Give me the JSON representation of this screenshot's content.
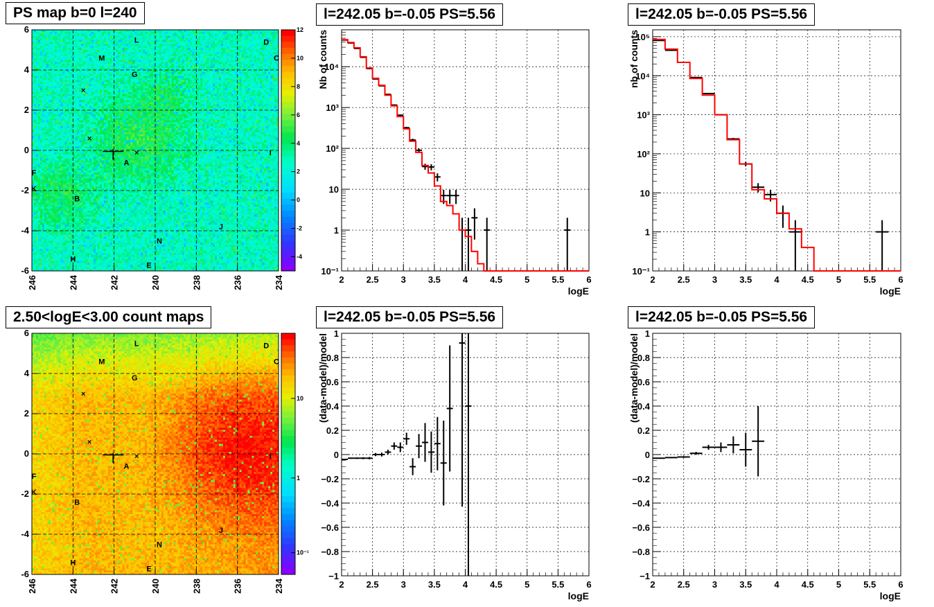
{
  "chart_data": [
    {
      "id": "psmap",
      "type": "heatmap",
      "title": "PS map b=0 l=240",
      "x_ticks": [
        "246",
        "244",
        "242",
        "240",
        "238",
        "236",
        "234"
      ],
      "y_ticks": [
        "6",
        "4",
        "2",
        "0",
        "-2",
        "-4",
        "-6"
      ],
      "xlim": [
        246,
        234
      ],
      "ylim": [
        -6,
        6
      ],
      "colorbar": {
        "scale": "linear",
        "min": -5,
        "max": 12,
        "ticks": [
          "12",
          "10",
          "8",
          "6",
          "4",
          "2",
          "0",
          "-2",
          "-4"
        ]
      },
      "sources": [
        {
          "label": "L",
          "l": 240.9,
          "b": 5.5
        },
        {
          "label": "D",
          "l": 234.6,
          "b": 5.4
        },
        {
          "label": "M",
          "l": 242.6,
          "b": 4.6
        },
        {
          "label": "C",
          "l": 234.1,
          "b": 4.6
        },
        {
          "label": "G",
          "l": 241.0,
          "b": 3.8
        },
        {
          "label": "I",
          "l": 234.4,
          "b": -0.1
        },
        {
          "label": "A",
          "l": 241.4,
          "b": -0.6
        },
        {
          "label": "F",
          "l": 245.9,
          "b": -1.1
        },
        {
          "label": "K",
          "l": 245.9,
          "b": -1.9
        },
        {
          "label": "B",
          "l": 243.8,
          "b": -2.4
        },
        {
          "label": "J",
          "l": 236.8,
          "b": -3.8
        },
        {
          "label": "N",
          "l": 239.8,
          "b": -4.5
        },
        {
          "label": "H",
          "l": 244.0,
          "b": -5.4
        },
        {
          "label": "E",
          "l": 240.3,
          "b": -5.7
        }
      ],
      "markers_x": [
        {
          "l": 243.5,
          "b": 3.0
        },
        {
          "l": 243.2,
          "b": 0.6
        },
        {
          "l": 240.9,
          "b": -0.1
        }
      ],
      "grid": true
    },
    {
      "id": "countmap",
      "type": "heatmap",
      "title": "2.50<logE<3.00 count maps",
      "x_ticks": [
        "246",
        "244",
        "242",
        "240",
        "238",
        "236",
        "234"
      ],
      "y_ticks": [
        "6",
        "4",
        "2",
        "0",
        "-2",
        "-4",
        "-6"
      ],
      "xlim": [
        246,
        234
      ],
      "ylim": [
        -6,
        6
      ],
      "colorbar": {
        "scale": "log",
        "ticks": [
          "10",
          "1",
          "10⁻¹"
        ]
      },
      "sources": [
        {
          "label": "L",
          "l": 240.9,
          "b": 5.5
        },
        {
          "label": "D",
          "l": 234.6,
          "b": 5.4
        },
        {
          "label": "M",
          "l": 242.6,
          "b": 4.6
        },
        {
          "label": "C",
          "l": 234.1,
          "b": 4.6
        },
        {
          "label": "G",
          "l": 241.0,
          "b": 3.8
        },
        {
          "label": "I",
          "l": 234.4,
          "b": -0.1
        },
        {
          "label": "A",
          "l": 241.4,
          "b": -0.6
        },
        {
          "label": "F",
          "l": 245.9,
          "b": -1.1
        },
        {
          "label": "K",
          "l": 245.9,
          "b": -1.9
        },
        {
          "label": "B",
          "l": 243.8,
          "b": -2.4
        },
        {
          "label": "J",
          "l": 236.8,
          "b": -3.8
        },
        {
          "label": "N",
          "l": 239.8,
          "b": -4.5
        },
        {
          "label": "H",
          "l": 244.0,
          "b": -5.4
        },
        {
          "label": "E",
          "l": 240.3,
          "b": -5.7
        }
      ],
      "markers_x": [
        {
          "l": 243.5,
          "b": 3.0
        },
        {
          "l": 243.2,
          "b": 0.6
        },
        {
          "l": 240.9,
          "b": -0.1
        }
      ],
      "grid": true
    },
    {
      "id": "spec1",
      "type": "line",
      "title": "l=242.05 b=-0.05 PS=5.56",
      "xlabel": "logE",
      "ylabel": "Nb of counts",
      "xlim": [
        2,
        6
      ],
      "ylim": [
        0.1,
        80000
      ],
      "yscale": "log",
      "x_ticks": [
        "2",
        "2.5",
        "3",
        "3.5",
        "4",
        "4.5",
        "5",
        "5.5",
        "6"
      ],
      "y_ticks": [
        {
          "v": 0.1,
          "t": "10⁻¹"
        },
        {
          "v": 1,
          "t": "1"
        },
        {
          "v": 10,
          "t": "10"
        },
        {
          "v": 100,
          "t": "10²"
        },
        {
          "v": 1000,
          "t": "10³"
        },
        {
          "v": 10000,
          "t": "10⁴"
        }
      ],
      "series": [
        {
          "kind": "data",
          "x": [
            2.05,
            2.15,
            2.25,
            2.35,
            2.45,
            2.55,
            2.65,
            2.75,
            2.85,
            2.95,
            3.05,
            3.15,
            3.25,
            3.35,
            3.45,
            3.55,
            3.65,
            3.75,
            3.85,
            3.95,
            4.05,
            4.15,
            4.25,
            4.35,
            4.45,
            5.65
          ],
          "y": [
            45000,
            38000,
            28000,
            17000,
            9000,
            5000,
            3400,
            2100,
            1150,
            650,
            320,
            160,
            90,
            36,
            35,
            20,
            7,
            7,
            7,
            1,
            1,
            2,
            0,
            1,
            0,
            1
          ]
        },
        {
          "kind": "model",
          "edges": [
            2.0,
            2.1,
            2.2,
            2.3,
            2.4,
            2.5,
            2.6,
            2.7,
            2.8,
            2.9,
            3.0,
            3.1,
            3.2,
            3.3,
            3.4,
            3.5,
            3.6,
            3.7,
            3.8,
            3.9,
            4.0,
            4.1,
            4.2,
            4.3,
            4.4,
            6.0
          ],
          "y": [
            46000,
            39000,
            29000,
            17500,
            9300,
            5200,
            3500,
            2000,
            1100,
            600,
            300,
            150,
            80,
            38,
            25,
            12,
            5,
            4,
            2.5,
            1,
            0.7,
            0.3,
            0.15,
            0.1,
            0.1
          ]
        }
      ],
      "grid": true
    },
    {
      "id": "spec2",
      "type": "line",
      "title": "l=242.05 b=-0.05 PS=5.56",
      "xlabel": "logE",
      "ylabel": "nb of counts",
      "xlim": [
        2,
        6
      ],
      "ylim": [
        0.1,
        150000
      ],
      "yscale": "log",
      "x_ticks": [
        "2",
        "2.5",
        "3",
        "3.5",
        "4",
        "4.5",
        "5",
        "5.5",
        "6"
      ],
      "y_ticks": [
        {
          "v": 0.1,
          "t": "10⁻¹"
        },
        {
          "v": 1,
          "t": "1"
        },
        {
          "v": 10,
          "t": "10"
        },
        {
          "v": 100,
          "t": "10²"
        },
        {
          "v": 1000,
          "t": "10³"
        },
        {
          "v": 10000,
          "t": "10⁴"
        },
        {
          "v": 100000,
          "t": "10⁵"
        }
      ],
      "series": [
        {
          "kind": "data",
          "x": [
            2.1,
            2.3,
            2.5,
            2.7,
            2.9,
            3.1,
            3.3,
            3.5,
            3.7,
            3.9,
            4.1,
            4.3,
            5.7
          ],
          "y": [
            80000,
            45000,
            22000,
            9000,
            3500,
            1000,
            240,
            55,
            14,
            9,
            3,
            1,
            1
          ]
        },
        {
          "kind": "model",
          "edges": [
            2.0,
            2.2,
            2.4,
            2.6,
            2.8,
            3.0,
            3.2,
            3.4,
            3.6,
            3.8,
            4.0,
            4.2,
            4.4,
            4.6,
            6.0
          ],
          "y": [
            85000,
            48000,
            22000,
            8500,
            3200,
            1000,
            230,
            55,
            12,
            7,
            3,
            1.2,
            0.4,
            0.1
          ]
        }
      ],
      "grid": true
    },
    {
      "id": "resid1",
      "type": "scatter",
      "title": "l=242.05 b=-0.05 PS=5.56",
      "xlabel": "logE",
      "ylabel": "(data-model)/model",
      "xlim": [
        2,
        6
      ],
      "ylim": [
        -1,
        1
      ],
      "x_ticks": [
        "2",
        "2.5",
        "3",
        "3.5",
        "4",
        "4.5",
        "5",
        "5.5",
        "6"
      ],
      "y_ticks": [
        "1",
        "0.8",
        "0.6",
        "0.4",
        "0.2",
        "0",
        "-0.2",
        "-0.4",
        "-0.6",
        "-0.8",
        "-1"
      ],
      "series": [
        {
          "x": [
            2.05,
            2.15,
            2.25,
            2.35,
            2.45,
            2.55,
            2.65,
            2.75,
            2.85,
            2.95,
            3.05,
            3.15,
            3.25,
            3.35,
            3.45,
            3.55,
            3.65,
            3.75,
            3.95,
            4.05
          ],
          "y": [
            -0.04,
            -0.03,
            -0.03,
            -0.03,
            -0.03,
            0.0,
            0.0,
            0.02,
            0.07,
            0.06,
            0.13,
            -0.1,
            0.07,
            0.1,
            0.02,
            0.09,
            -0.07,
            0.38,
            0.92,
            0.4
          ],
          "err": [
            0.005,
            0.005,
            0.006,
            0.008,
            0.01,
            0.013,
            0.016,
            0.02,
            0.03,
            0.04,
            0.05,
            0.07,
            0.1,
            0.16,
            0.17,
            0.22,
            0.35,
            0.52,
            1.35,
            2.2
          ]
        }
      ],
      "grid": true
    },
    {
      "id": "resid2",
      "type": "scatter",
      "title": "l=242.05 b=-0.05 PS=5.56",
      "xlabel": "logE",
      "ylabel": "(data-model)/model",
      "xlim": [
        2,
        6
      ],
      "ylim": [
        -1,
        1
      ],
      "x_ticks": [
        "2",
        "2.5",
        "3",
        "3.5",
        "4",
        "4.5",
        "5",
        "5.5",
        "6"
      ],
      "y_ticks": [
        "1",
        "0.8",
        "0.6",
        "0.4",
        "0.2",
        "0",
        "-0.2",
        "-0.4",
        "-0.6",
        "-0.8",
        "-1"
      ],
      "series": [
        {
          "x": [
            2.1,
            2.3,
            2.5,
            2.7,
            2.9,
            3.1,
            3.3,
            3.5,
            3.7
          ],
          "y": [
            -0.03,
            -0.025,
            -0.02,
            0.01,
            0.06,
            0.06,
            0.08,
            0.04,
            0.11
          ],
          "err": [
            0.004,
            0.005,
            0.007,
            0.012,
            0.02,
            0.04,
            0.07,
            0.14,
            0.29
          ]
        }
      ],
      "grid": true
    }
  ],
  "style": {
    "model_color": "#ff0000",
    "data_color": "#000000",
    "grid_color": "#000000",
    "map1_base": "#00ffff",
    "map2_base": "#ff6600"
  }
}
